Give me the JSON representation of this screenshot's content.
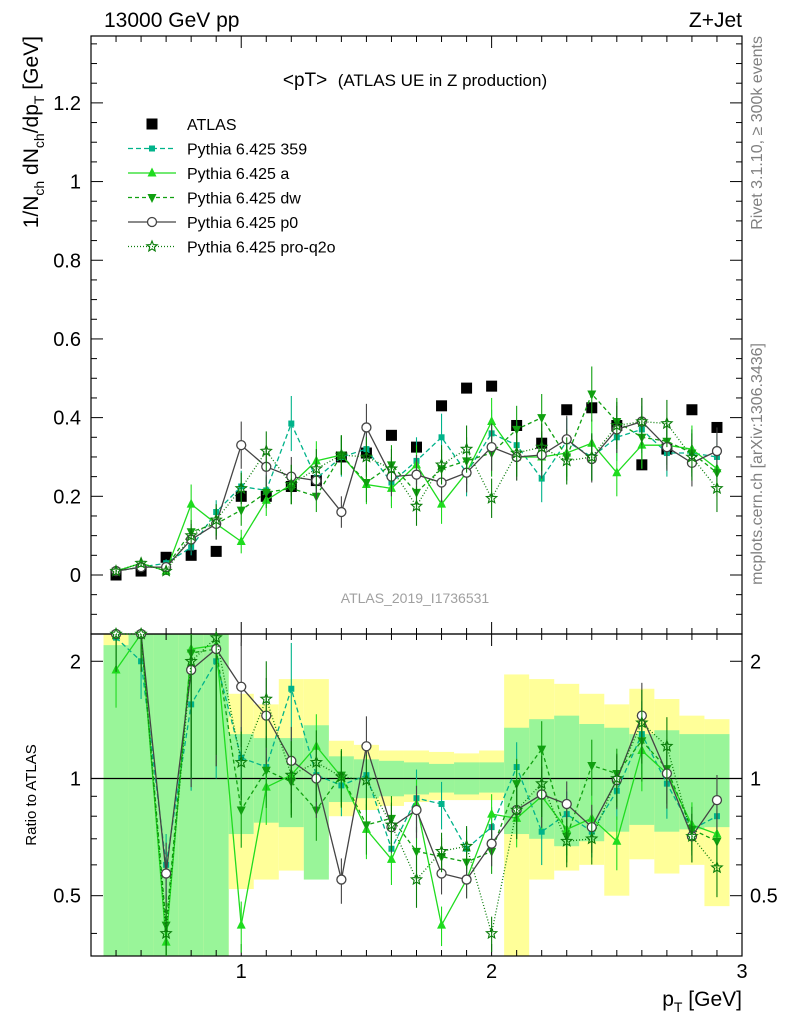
{
  "header": {
    "left": "13000 GeV pp",
    "right": "Z+Jet",
    "side_top": "Rivet 3.1.10, ≥ 300k events",
    "side_bottom": "mcplots.cern.ch [arXiv:1306.3436]",
    "analysis": "ATLAS_2019_I1736531"
  },
  "colors": {
    "atlas": "#000000",
    "p359": "#00b38a",
    "pa": "#1fdc1f",
    "pdw": "#10a010",
    "pp0": "#444444",
    "pq2o": "#0a7d0a",
    "band_yellow": "#ffff99",
    "band_green": "#99f599"
  },
  "chart_data": [
    {
      "type": "scatter",
      "title": "<pT> (ATLAS UE in Z production)",
      "title_main": "<pT>",
      "title_sub": "(ATLAS UE in Z production)",
      "ylabel": "1/N_ch dN_ch/dp_T [GeV]",
      "xlabel": "p_T [GeV]",
      "xlim": [
        0.4,
        3.0
      ],
      "ylim": [
        -0.15,
        1.37
      ],
      "x_ticks": [
        "1",
        "2",
        "3"
      ],
      "y_ticks": [
        "0",
        "0.2",
        "0.4",
        "0.6",
        "0.8",
        "1",
        "1.2"
      ],
      "legend_position": "top-left",
      "x": [
        0.5,
        0.6,
        0.7,
        0.8,
        0.9,
        1.0,
        1.1,
        1.2,
        1.3,
        1.4,
        1.5,
        1.6,
        1.7,
        1.8,
        1.9,
        2.0,
        2.1,
        2.2,
        2.3,
        2.4,
        2.5,
        2.6,
        2.7,
        2.8,
        2.9
      ],
      "series": [
        {
          "name": "ATLAS",
          "key": "atlas",
          "marker": "square",
          "values": [
            0.0,
            0.01,
            0.045,
            0.05,
            0.06,
            0.2,
            0.2,
            0.225,
            0.24,
            0.3,
            0.31,
            0.355,
            0.325,
            0.43,
            0.475,
            0.48,
            0.38,
            0.335,
            0.42,
            0.425,
            0.38,
            0.28,
            0.32,
            0.42,
            0.375
          ]
        },
        {
          "name": "Pythia 6.425 359",
          "key": "p359",
          "marker": "smallsquare",
          "dash": "5,3",
          "values": [
            0.01,
            0.02,
            0.03,
            0.07,
            0.16,
            0.225,
            0.215,
            0.385,
            0.245,
            0.3,
            0.32,
            0.235,
            0.29,
            0.35,
            0.26,
            0.36,
            0.33,
            0.245,
            0.34,
            0.3,
            0.35,
            0.37,
            0.31,
            0.31,
            0.3
          ],
          "errors": [
            0.01,
            0.01,
            0.01,
            0.02,
            0.03,
            0.04,
            0.04,
            0.07,
            0.05,
            0.05,
            0.06,
            0.06,
            0.06,
            0.06,
            0.06,
            0.06,
            0.06,
            0.06,
            0.06,
            0.06,
            0.06,
            0.06,
            0.06,
            0.06,
            0.06
          ]
        },
        {
          "name": "Pythia 6.425 a",
          "key": "pa",
          "marker": "triangle",
          "dash": "",
          "values": [
            0.01,
            0.03,
            0.01,
            0.18,
            0.13,
            0.085,
            0.19,
            0.23,
            0.29,
            0.305,
            0.23,
            0.22,
            0.28,
            0.18,
            0.26,
            0.39,
            0.3,
            0.3,
            0.31,
            0.335,
            0.26,
            0.33,
            0.33,
            0.32,
            0.27
          ],
          "errors": [
            0.01,
            0.01,
            0.01,
            0.05,
            0.04,
            0.03,
            0.04,
            0.05,
            0.05,
            0.05,
            0.05,
            0.05,
            0.05,
            0.05,
            0.05,
            0.06,
            0.06,
            0.06,
            0.06,
            0.06,
            0.06,
            0.06,
            0.06,
            0.06,
            0.06
          ]
        },
        {
          "name": "Pythia 6.425 dw",
          "key": "pdw",
          "marker": "invtriangle",
          "dash": "4,3",
          "values": [
            0.01,
            0.02,
            0.02,
            0.11,
            0.13,
            0.165,
            0.21,
            0.22,
            0.2,
            0.305,
            0.235,
            0.28,
            0.21,
            0.27,
            0.29,
            0.31,
            0.37,
            0.4,
            0.3,
            0.46,
            0.39,
            0.35,
            0.34,
            0.31,
            0.26
          ],
          "errors": [
            0.01,
            0.01,
            0.01,
            0.03,
            0.04,
            0.04,
            0.04,
            0.04,
            0.04,
            0.05,
            0.05,
            0.05,
            0.05,
            0.05,
            0.06,
            0.06,
            0.06,
            0.06,
            0.06,
            0.07,
            0.06,
            0.06,
            0.06,
            0.06,
            0.06
          ]
        },
        {
          "name": "Pythia 6.425 p0",
          "key": "pp0",
          "marker": "circle",
          "dash": "",
          "values": [
            0.01,
            0.02,
            0.02,
            0.09,
            0.13,
            0.33,
            0.275,
            0.25,
            0.24,
            0.16,
            0.375,
            0.25,
            0.255,
            0.235,
            0.26,
            0.325,
            0.3,
            0.305,
            0.345,
            0.295,
            0.37,
            0.39,
            0.325,
            0.285,
            0.315
          ],
          "errors": [
            0.01,
            0.01,
            0.01,
            0.03,
            0.04,
            0.06,
            0.05,
            0.05,
            0.05,
            0.04,
            0.06,
            0.05,
            0.05,
            0.05,
            0.05,
            0.06,
            0.06,
            0.06,
            0.06,
            0.06,
            0.06,
            0.06,
            0.06,
            0.06,
            0.06
          ]
        },
        {
          "name": "Pythia 6.425 pro-q2o",
          "key": "pq2o",
          "marker": "star",
          "dash": "1,2",
          "values": [
            0.01,
            0.03,
            0.01,
            0.1,
            0.14,
            0.22,
            0.315,
            0.23,
            0.27,
            0.305,
            0.3,
            0.27,
            0.175,
            0.28,
            0.32,
            0.195,
            0.31,
            0.325,
            0.29,
            0.3,
            0.38,
            0.39,
            0.385,
            0.3,
            0.22
          ],
          "errors": [
            0.01,
            0.01,
            0.01,
            0.03,
            0.04,
            0.04,
            0.05,
            0.05,
            0.05,
            0.05,
            0.05,
            0.05,
            0.05,
            0.05,
            0.06,
            0.05,
            0.06,
            0.06,
            0.06,
            0.06,
            0.06,
            0.06,
            0.06,
            0.06,
            0.06
          ]
        }
      ]
    },
    {
      "type": "scatter",
      "ylabel": "Ratio to ATLAS",
      "xlim": [
        0.4,
        3.0
      ],
      "ylim": [
        0.35,
        2.35
      ],
      "y_ticks": [
        "0.5",
        "1",
        "2"
      ],
      "y_scale": "log",
      "reference_line": 1,
      "x": [
        0.5,
        0.6,
        0.7,
        0.8,
        0.9,
        1.0,
        1.1,
        1.2,
        1.3,
        1.4,
        1.5,
        1.6,
        1.7,
        1.8,
        1.9,
        2.0,
        2.1,
        2.2,
        2.3,
        2.4,
        2.5,
        2.6,
        2.7,
        2.8,
        2.9
      ],
      "band_yellow_low": [
        0.35,
        0.35,
        0.35,
        0.35,
        0.35,
        0.52,
        0.55,
        0.58,
        0.6,
        0.8,
        0.83,
        0.85,
        0.87,
        0.88,
        0.88,
        0.88,
        0.35,
        0.55,
        0.58,
        0.6,
        0.5,
        0.62,
        0.57,
        0.6,
        0.47
      ],
      "band_yellow_high": [
        2.35,
        2.35,
        2.35,
        2.35,
        2.35,
        1.65,
        1.55,
        1.8,
        1.8,
        1.25,
        1.22,
        1.18,
        1.18,
        1.17,
        1.16,
        1.18,
        1.85,
        1.8,
        1.75,
        1.65,
        1.55,
        1.7,
        1.6,
        1.45,
        1.42
      ],
      "band_green_low": [
        0.35,
        0.35,
        0.35,
        0.35,
        0.35,
        0.72,
        0.77,
        0.75,
        0.55,
        0.87,
        0.89,
        0.9,
        0.91,
        0.92,
        0.91,
        0.92,
        0.72,
        0.7,
        0.67,
        0.69,
        0.73,
        0.76,
        0.73,
        0.74,
        0.75
      ],
      "band_green_high": [
        2.2,
        2.35,
        2.35,
        2.35,
        2.35,
        1.3,
        1.27,
        1.27,
        1.37,
        1.14,
        1.12,
        1.11,
        1.1,
        1.09,
        1.1,
        1.1,
        1.35,
        1.42,
        1.45,
        1.38,
        1.35,
        1.3,
        1.33,
        1.3,
        1.3
      ],
      "series": [
        {
          "key": "p359",
          "values": [
            2.3,
            2.0,
            0.6,
            1.55,
            2.0,
            1.13,
            1.07,
            1.7,
            1.02,
            0.96,
            1.02,
            0.66,
            0.89,
            0.86,
            0.66,
            0.75,
            1.07,
            0.73,
            0.81,
            0.73,
            0.93,
            1.3,
            0.97,
            0.74,
            0.8
          ]
        },
        {
          "key": "pa",
          "values": [
            1.9,
            2.35,
            0.38,
            2.15,
            2.2,
            0.42,
            0.95,
            1.02,
            1.21,
            1.01,
            0.74,
            0.62,
            0.86,
            0.42,
            0.55,
            0.81,
            0.79,
            0.9,
            0.74,
            0.79,
            0.69,
            1.18,
            1.03,
            0.76,
            0.72
          ]
        },
        {
          "key": "pdw",
          "values": [
            2.35,
            2.35,
            0.42,
            2.1,
            2.15,
            0.83,
            1.05,
            0.98,
            0.83,
            1.02,
            0.76,
            0.79,
            0.65,
            0.63,
            0.61,
            0.65,
            0.97,
            1.19,
            0.71,
            1.08,
            1.03,
            1.25,
            1.06,
            0.74,
            0.69
          ]
        },
        {
          "key": "pp0",
          "values": [
            2.35,
            2.35,
            0.57,
            1.9,
            2.15,
            1.72,
            1.45,
            1.11,
            1.0,
            0.55,
            1.21,
            0.75,
            0.83,
            0.57,
            0.55,
            0.68,
            0.83,
            0.91,
            0.86,
            0.75,
            0.99,
            1.45,
            1.03,
            0.71,
            0.88
          ]
        },
        {
          "key": "pq2o",
          "values": [
            2.35,
            2.35,
            0.4,
            2.0,
            2.3,
            1.1,
            1.6,
            1.02,
            1.1,
            1.01,
            0.99,
            0.76,
            0.55,
            0.65,
            0.67,
            0.4,
            0.83,
            0.97,
            0.69,
            0.7,
            1.0,
            1.39,
            1.21,
            0.71,
            0.59
          ]
        }
      ]
    }
  ]
}
